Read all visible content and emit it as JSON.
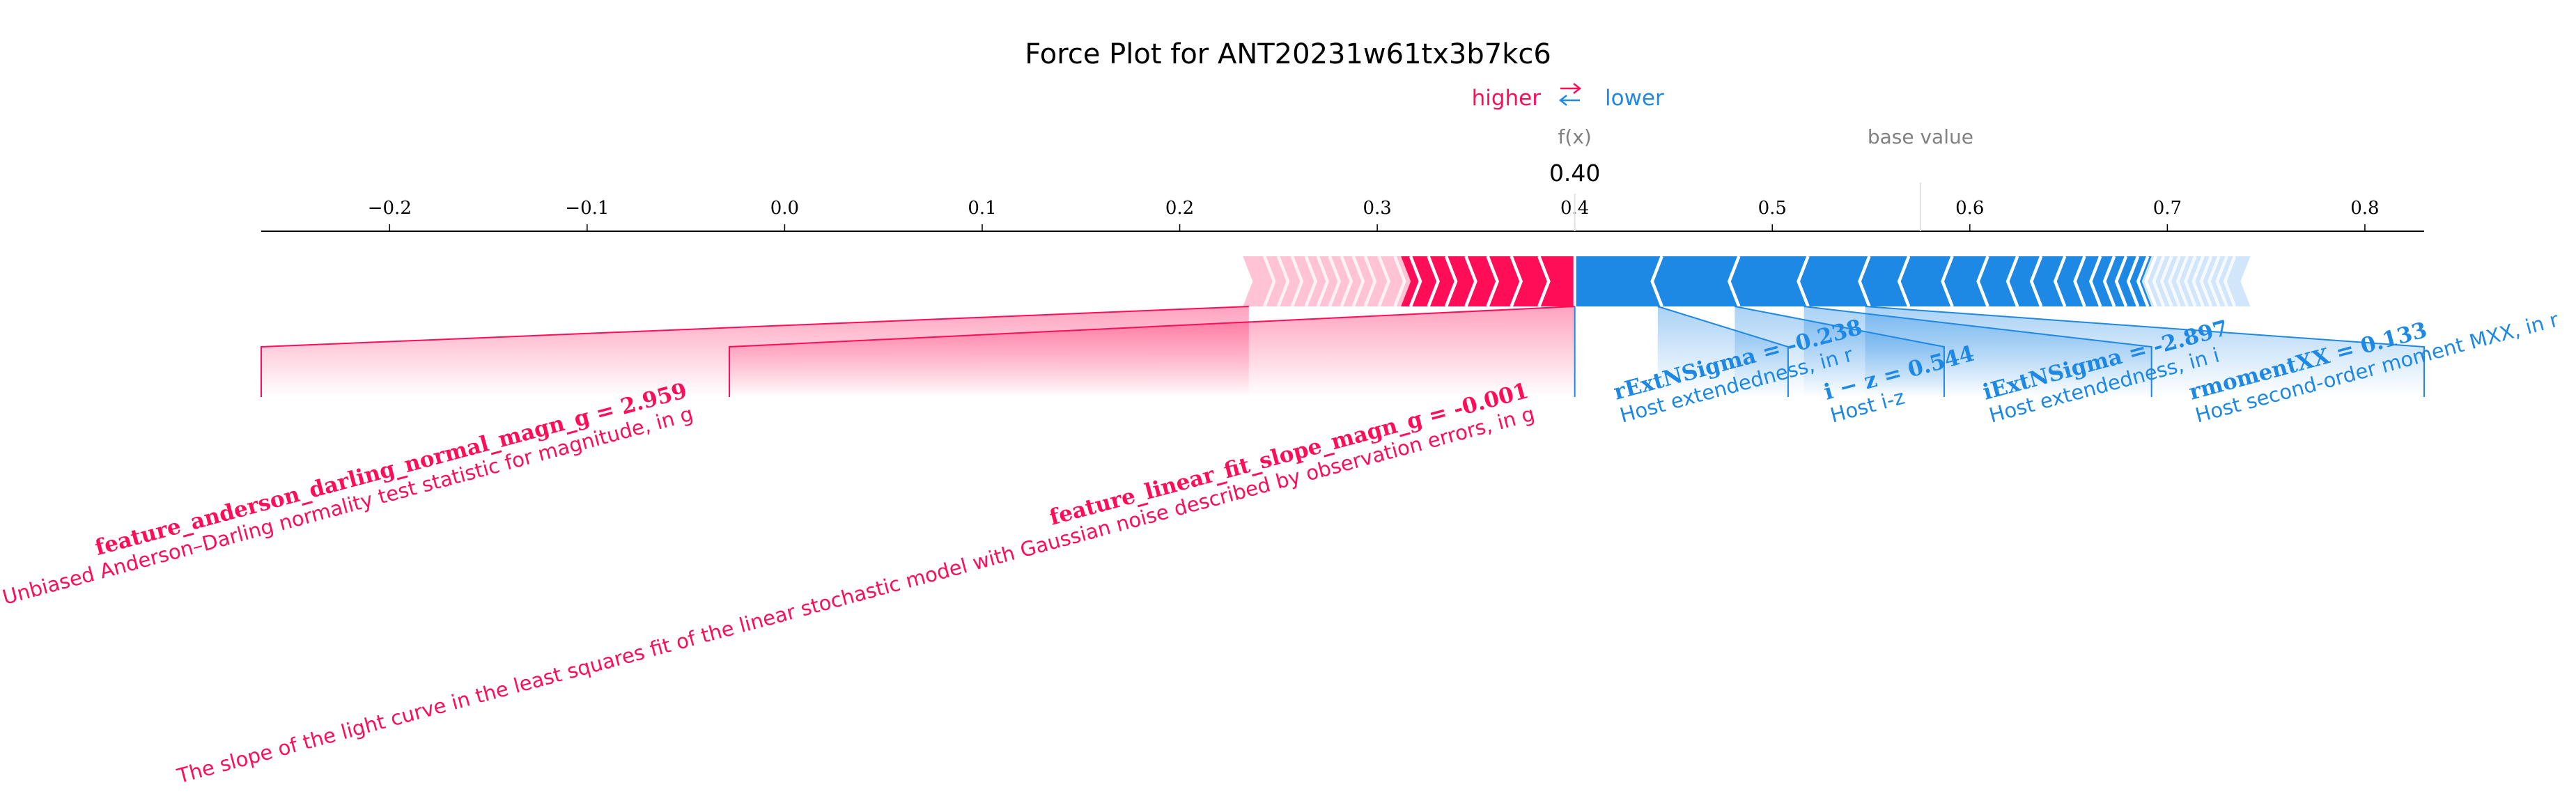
{
  "chart_data": {
    "type": "force",
    "title": "Force Plot for ANT20231w61tx3b7kc6",
    "legend": {
      "higher": "higher",
      "lower": "lower",
      "arrow": "⇄"
    },
    "fx_label": "f(x)",
    "fx_value": 0.4,
    "fx_text": "0.40",
    "base_label": "base value",
    "base_value": 0.575,
    "xlim": [
      -0.265,
      0.83
    ],
    "ticks": [
      -0.2,
      -0.1,
      0.0,
      0.1,
      0.2,
      0.3,
      0.4,
      0.5,
      0.6,
      0.7,
      0.8
    ],
    "tick_labels": [
      "−0.2",
      "−0.1",
      "0.0",
      "0.1",
      "0.2",
      "0.3",
      "0.4",
      "0.5",
      "0.6",
      "0.7",
      "0.8"
    ],
    "positive_bar_range": [
      0.232,
      0.4
    ],
    "negative_bar_range": [
      0.4,
      0.742
    ],
    "positive_chevrons": [
      0.245,
      0.252,
      0.259,
      0.266,
      0.272,
      0.278,
      0.284,
      0.29,
      0.296,
      0.303,
      0.311,
      0.319,
      0.328,
      0.337,
      0.347,
      0.358,
      0.37,
      0.384
    ],
    "negative_chevrons": [
      0.442,
      0.481,
      0.516,
      0.547,
      0.567,
      0.589,
      0.607,
      0.622,
      0.634,
      0.646,
      0.656,
      0.664,
      0.671,
      0.677,
      0.683,
      0.688,
      0.692,
      0.696,
      0.7,
      0.704,
      0.708,
      0.712,
      0.716,
      0.72,
      0.724,
      0.728,
      0.732
    ],
    "positive_features": [
      {
        "name": "feature_anderson_darling_normal_magn_g = 2.959",
        "description": "Unbiased Anderson–Darling normality test statistic for magnitude, in g",
        "bar_x": 0.235,
        "axis_x": -0.265
      },
      {
        "name": "feature_linear_fit_slope_magn_g = -0.001",
        "description": "The slope of the light curve in the least squares fit of the linear stochastic model with Gaussian noise described by observation errors, in g",
        "bar_x": 0.4,
        "axis_x": -0.028
      }
    ],
    "negative_features": [
      {
        "name": "rExtNSigma = -0.238",
        "description": "Host extendedness, in r",
        "bar_x": 0.4,
        "axis_x": 0.4
      },
      {
        "name": "i − z = 0.544",
        "description": "Host i-z",
        "bar_x": 0.442,
        "axis_x": 0.508
      },
      {
        "name": "iExtNSigma = -2.897",
        "description": "Host extendedness, in i",
        "bar_x": 0.481,
        "axis_x": 0.587
      },
      {
        "name": "rmomentXX = 0.133",
        "description": "Host second-order moment MXX, in r",
        "bar_x": 0.516,
        "axis_x": 0.692
      },
      {
        "name": "",
        "description": "",
        "bar_x": 0.547,
        "axis_x": 0.83
      }
    ],
    "colors": {
      "positive": "#ff0d57",
      "negative": "#1e88e5",
      "positive_light": "#ffc3d5",
      "negative_light": "#d1e6fa"
    }
  }
}
